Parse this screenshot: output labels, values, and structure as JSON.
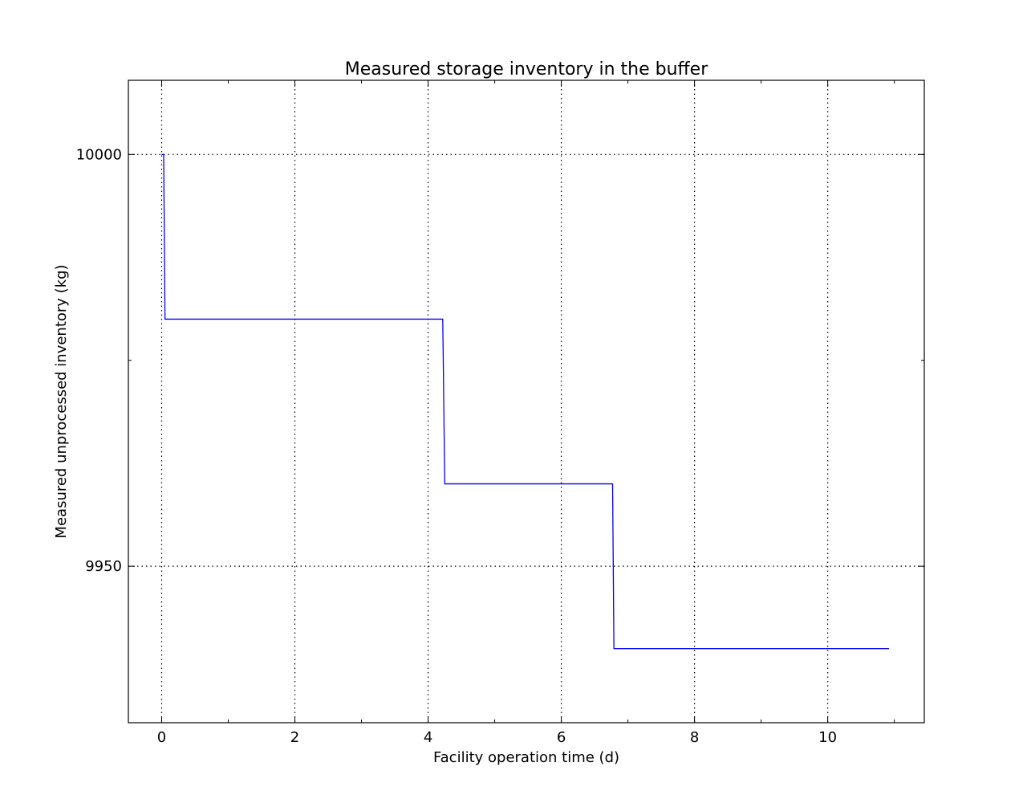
{
  "chart_data": {
    "type": "line",
    "title": "Measured storage inventory in the buffer",
    "xlabel": "Facility operation time (d)",
    "ylabel": "Measured unprocessed inventory (kg)",
    "xlim": [
      -0.5,
      11.45
    ],
    "ylim": [
      9931,
      10009
    ],
    "x_ticks": [
      0,
      2,
      4,
      6,
      8,
      10
    ],
    "x_tick_labels": [
      "0",
      "2",
      "4",
      "6",
      "8",
      "10"
    ],
    "x_minor_ticks": [
      1,
      3,
      5,
      7,
      9,
      11
    ],
    "y_ticks": [
      9950,
      10000
    ],
    "y_tick_labels": [
      "9950",
      "10000"
    ],
    "y_minor_ticks": [
      9975
    ],
    "grid": true,
    "series": [
      {
        "color": "#0000ff",
        "x": [
          0.0,
          0.03,
          0.05,
          4.22,
          4.25,
          6.77,
          6.79,
          10.92
        ],
        "y": [
          10000,
          10000,
          9980,
          9980,
          9960,
          9960,
          9940,
          9940
        ]
      }
    ]
  }
}
